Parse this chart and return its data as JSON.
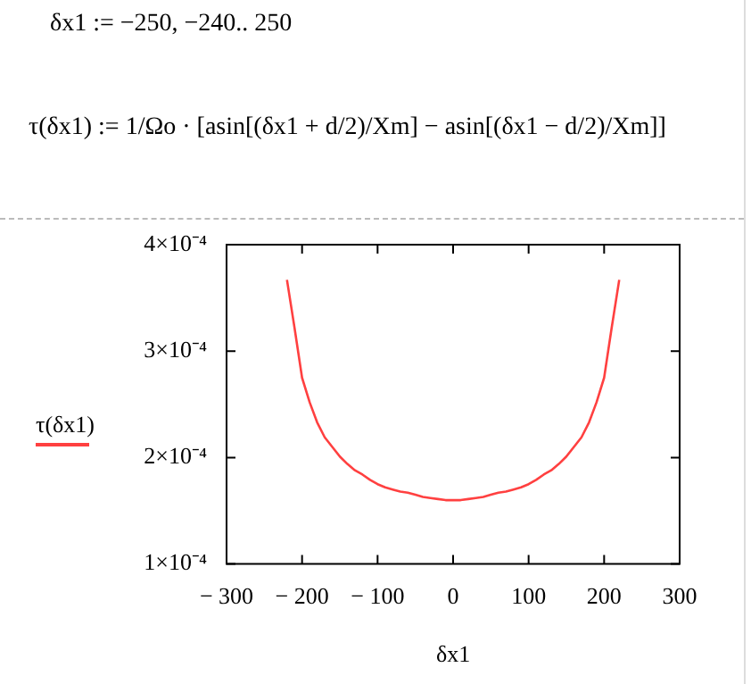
{
  "chart_data": {
    "type": "line",
    "annotations": [
      "δx1 := −250, −240.. 250",
      "τ(δx1) := 1/Ωo · [asin[(δx1 + d/2)/Xm] − asin[(δx1 − d/2)/Xm]]"
    ],
    "xlabel": "δx1",
    "x": [
      -220,
      -210,
      -200,
      -190,
      -180,
      -170,
      -160,
      -150,
      -140,
      -130,
      -120,
      -110,
      -100,
      -90,
      -80,
      -70,
      -60,
      -50,
      -40,
      -30,
      -20,
      -10,
      0,
      10,
      20,
      30,
      40,
      50,
      60,
      70,
      80,
      90,
      100,
      110,
      120,
      130,
      140,
      150,
      160,
      170,
      180,
      190,
      200,
      210,
      220
    ],
    "series": [
      {
        "name": "τ(δx1)",
        "color": "#ff4040",
        "values": [
          0.000367,
          0.000322,
          0.000275,
          0.000252,
          0.000233,
          0.000219,
          0.00021,
          0.000201,
          0.000194,
          0.000188,
          0.000184,
          0.000179,
          0.000175,
          0.000172,
          0.00017,
          0.000168,
          0.000167,
          0.000165,
          0.000163,
          0.000162,
          0.000161,
          0.00016,
          0.00016,
          0.00016,
          0.000161,
          0.000162,
          0.000163,
          0.000165,
          0.000167,
          0.000168,
          0.00017,
          0.000172,
          0.000175,
          0.000179,
          0.000184,
          0.000188,
          0.000194,
          0.000201,
          0.00021,
          0.000219,
          0.000233,
          0.000252,
          0.000275,
          0.000322,
          0.000367
        ]
      }
    ],
    "xlim": [
      -300,
      300
    ],
    "xticks": [
      {
        "value": -300,
        "label": "− 300"
      },
      {
        "value": -200,
        "label": "− 200"
      },
      {
        "value": -100,
        "label": "− 100"
      },
      0,
      100,
      200,
      300
    ],
    "ylim": [
      0.0001,
      0.0004
    ],
    "yticks": [
      {
        "value": 0.0001,
        "label": "1×10⁻⁴"
      },
      {
        "value": 0.0002,
        "label": "2×10⁻⁴"
      },
      {
        "value": 0.0003,
        "label": "3×10⁻⁴"
      },
      {
        "value": 0.0004,
        "label": "4×10⁻⁴"
      }
    ],
    "legend": "left",
    "marker": "none",
    "line_style": "solid",
    "grid": false
  }
}
